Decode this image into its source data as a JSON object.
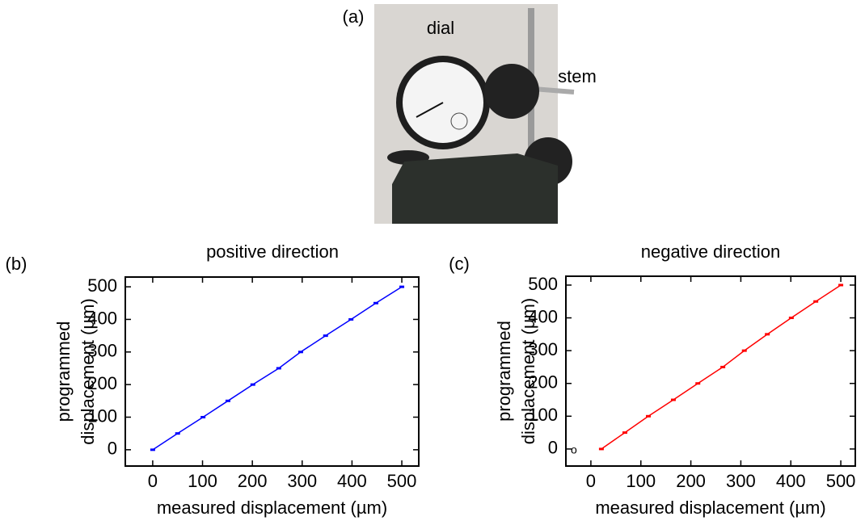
{
  "photo": {
    "label": "(a)",
    "annotations": [
      "dial",
      "stem"
    ]
  },
  "chart_data": [
    {
      "type": "line",
      "panel": "(b)",
      "title": "positive direction",
      "xlabel": "measured displacement (µm)",
      "ylabel": [
        "programmed",
        "displacement (µm)"
      ],
      "x": [
        0,
        50,
        101,
        151,
        201,
        253,
        297,
        347,
        398,
        448,
        500
      ],
      "series": [
        {
          "color": "#0000ff",
          "values": [
            0,
            50,
            100,
            150,
            200,
            250,
            300,
            350,
            400,
            450,
            500
          ]
        }
      ],
      "xlim": [
        -55,
        534
      ],
      "ylim": [
        -50,
        530
      ],
      "xticks": [
        0,
        100,
        200,
        300,
        400,
        500
      ],
      "yticks": [
        0,
        100,
        200,
        300,
        400,
        500
      ]
    },
    {
      "type": "line",
      "panel": "(c)",
      "title": "negative direction",
      "xlabel": "measured displacement (µm)",
      "ylabel": [
        "programmed",
        "displacement (µm)"
      ],
      "annotation": "o",
      "x": [
        21,
        68,
        115,
        165,
        214,
        264,
        307,
        353,
        401,
        450,
        500
      ],
      "series": [
        {
          "color": "#ff0000",
          "values": [
            0,
            50,
            100,
            150,
            200,
            250,
            300,
            350,
            400,
            450,
            500
          ]
        }
      ],
      "xlim": [
        -50,
        529
      ],
      "ylim": [
        -52,
        527
      ],
      "xticks": [
        0,
        100,
        200,
        300,
        400,
        500
      ],
      "yticks": [
        0,
        100,
        200,
        300,
        400,
        500
      ]
    }
  ]
}
